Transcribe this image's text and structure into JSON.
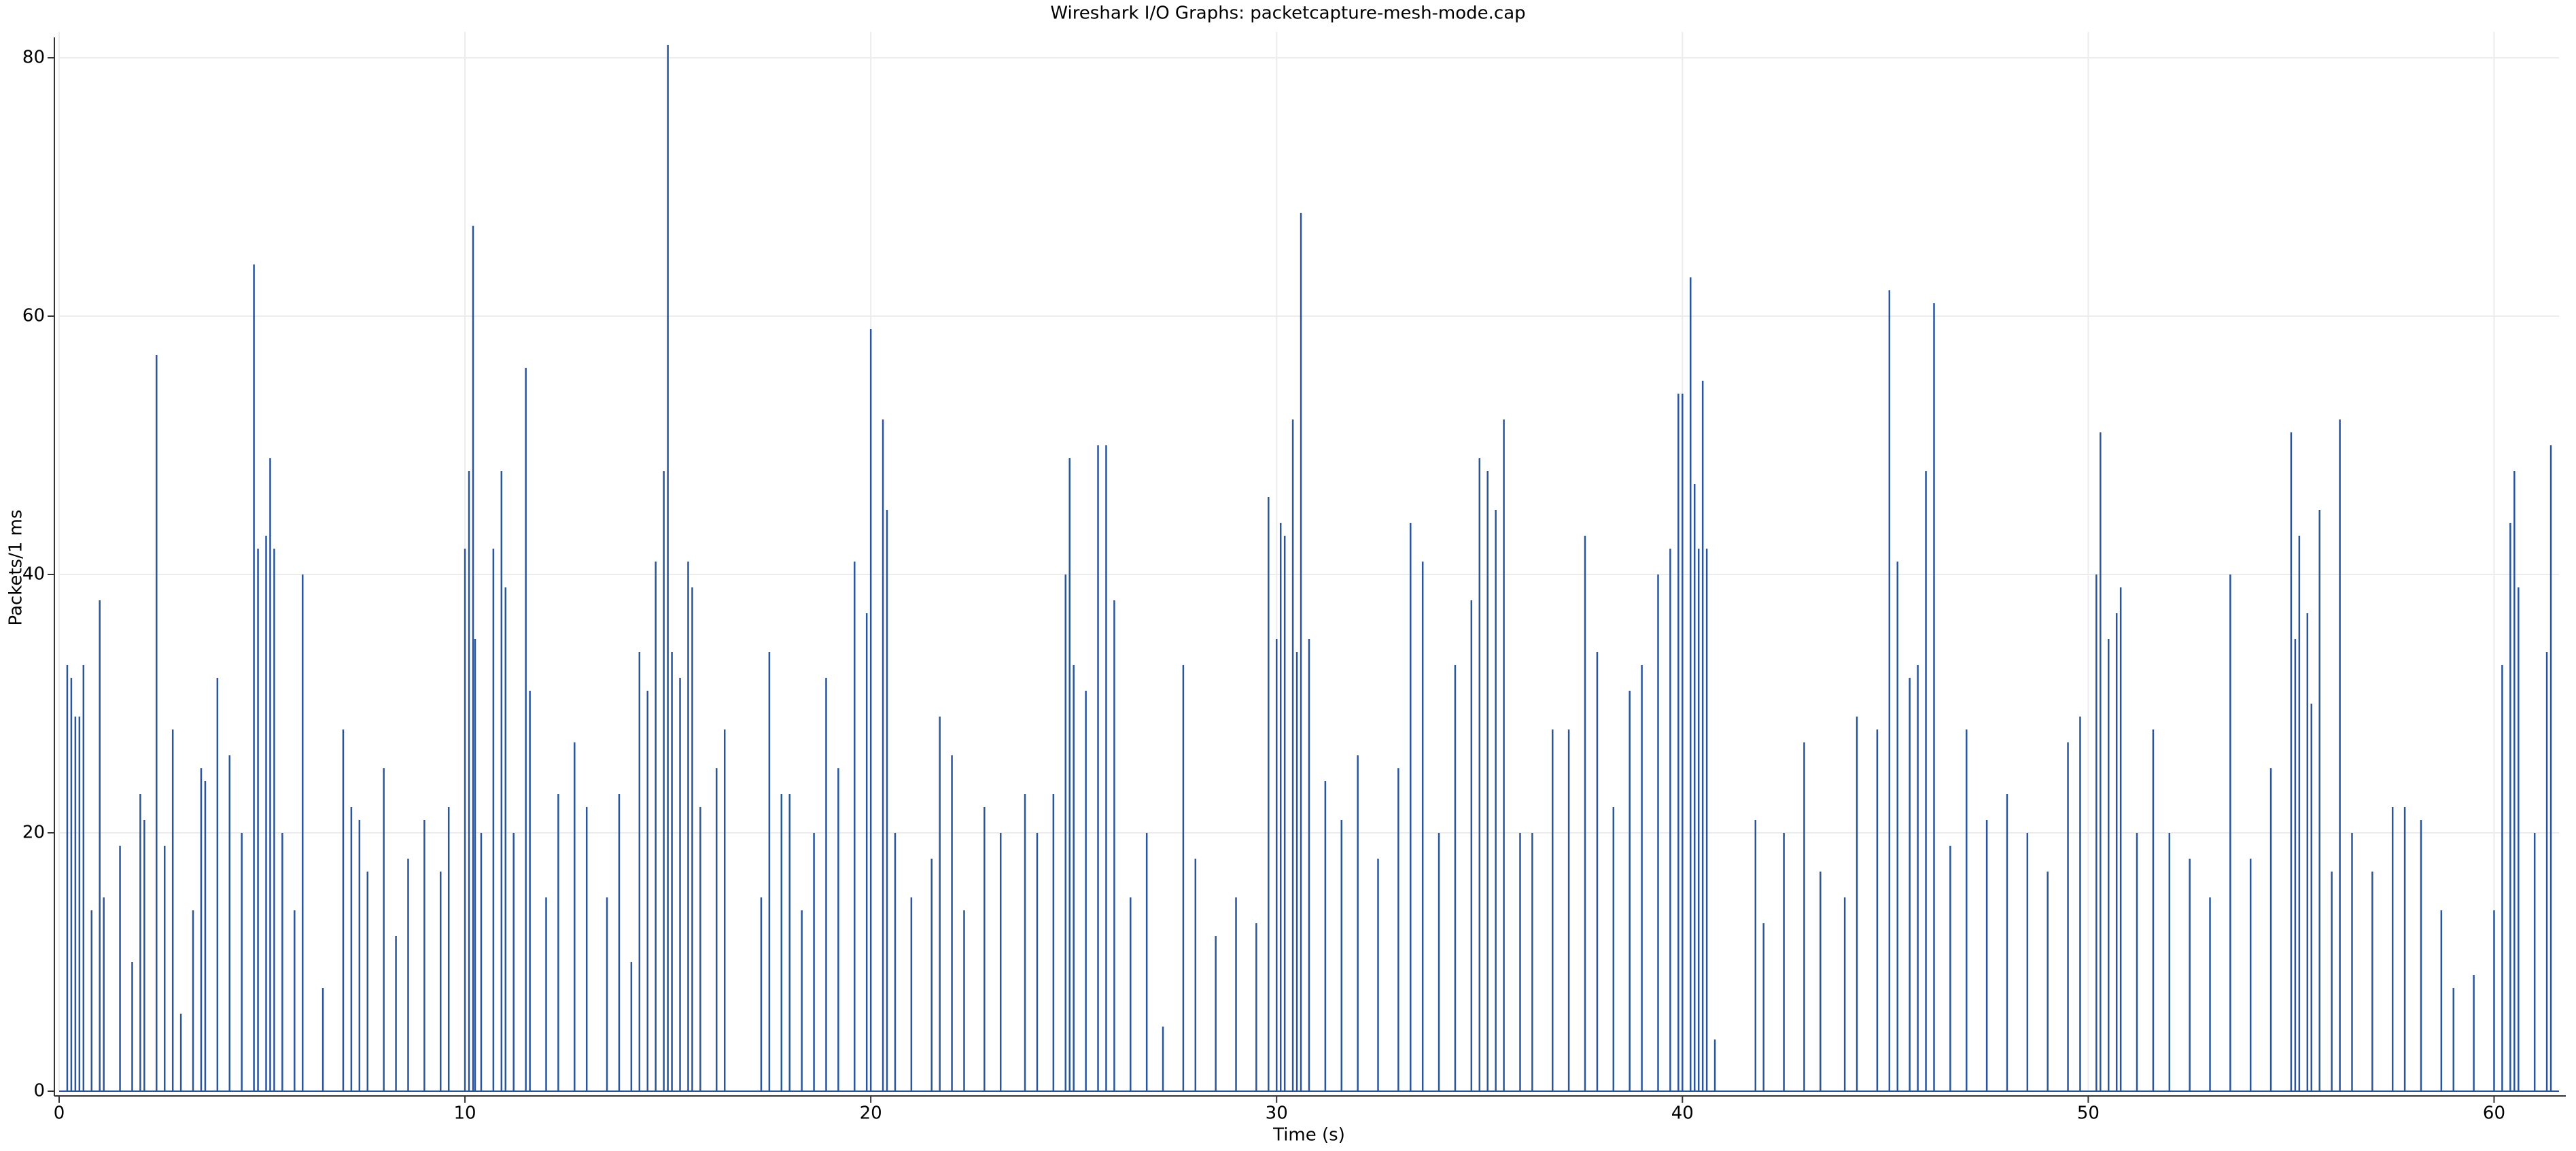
{
  "chart_data": {
    "type": "bar",
    "title": "Wireshark I/O Graphs: packetcapture-mesh-mode.cap",
    "x_label": "Time (s)",
    "y_label": "Packets/1 ms",
    "color": "#2b559b",
    "grid": true,
    "xlim": [
      0,
      61.6
    ],
    "xticks": [
      0,
      10,
      20,
      30,
      40,
      50,
      60
    ],
    "ylim": [
      0,
      82
    ],
    "yticks": [
      0,
      20,
      40,
      60,
      80
    ],
    "x": [
      0.2,
      0.3,
      0.4,
      0.5,
      0.6,
      0.8,
      1.0,
      1.1,
      1.5,
      1.8,
      2.0,
      2.1,
      2.4,
      2.6,
      2.8,
      3.0,
      3.3,
      3.5,
      3.6,
      3.9,
      4.2,
      4.5,
      4.8,
      4.9,
      5.1,
      5.2,
      5.3,
      5.5,
      5.8,
      6.0,
      6.5,
      7.0,
      7.2,
      7.4,
      7.6,
      8.0,
      8.3,
      8.6,
      9.0,
      9.4,
      9.6,
      10.0,
      10.1,
      10.2,
      10.25,
      10.4,
      10.7,
      10.9,
      11.0,
      11.2,
      11.5,
      11.6,
      12.0,
      12.3,
      12.7,
      13.0,
      13.5,
      13.8,
      14.1,
      14.3,
      14.5,
      14.7,
      14.9,
      15.0,
      15.1,
      15.3,
      15.5,
      15.6,
      15.8,
      16.2,
      16.4,
      17.3,
      17.5,
      17.8,
      18.0,
      18.3,
      18.6,
      18.9,
      19.2,
      19.6,
      19.9,
      20.0,
      20.3,
      20.4,
      20.6,
      21.0,
      21.5,
      21.7,
      22.0,
      22.3,
      22.8,
      23.2,
      23.8,
      24.1,
      24.5,
      24.8,
      24.9,
      25.0,
      25.3,
      25.6,
      25.8,
      26.0,
      26.4,
      26.8,
      27.2,
      27.7,
      28.0,
      28.5,
      29.0,
      29.5,
      29.8,
      30.0,
      30.1,
      30.2,
      30.4,
      30.5,
      30.6,
      30.8,
      31.2,
      31.6,
      32.0,
      32.5,
      33.0,
      33.3,
      33.6,
      34.0,
      34.4,
      34.8,
      35.0,
      35.2,
      35.4,
      35.6,
      36.0,
      36.3,
      36.8,
      37.2,
      37.6,
      37.9,
      38.3,
      38.7,
      39.0,
      39.4,
      39.7,
      39.9,
      40.0,
      40.2,
      40.3,
      40.4,
      40.5,
      40.6,
      40.8,
      41.8,
      42.0,
      42.5,
      43.0,
      43.4,
      44.0,
      44.3,
      44.8,
      45.1,
      45.3,
      45.6,
      45.8,
      46.0,
      46.2,
      46.6,
      47.0,
      47.5,
      48.0,
      48.5,
      49.0,
      49.5,
      49.8,
      50.2,
      50.3,
      50.5,
      50.7,
      50.8,
      51.2,
      51.6,
      52.0,
      52.5,
      53.0,
      53.5,
      54.0,
      54.5,
      55.0,
      55.1,
      55.2,
      55.4,
      55.5,
      55.7,
      56.0,
      56.2,
      56.5,
      57.0,
      57.5,
      57.8,
      58.2,
      58.7,
      59.0,
      59.5,
      60.0,
      60.2,
      60.4,
      60.5,
      60.6,
      61.0,
      61.3,
      61.4
    ],
    "values": [
      33,
      32,
      29,
      29,
      33,
      14,
      38,
      15,
      19,
      10,
      23,
      21,
      57,
      19,
      28,
      6,
      14,
      25,
      24,
      32,
      26,
      20,
      64,
      42,
      43,
      49,
      42,
      20,
      14,
      40,
      8,
      28,
      22,
      21,
      17,
      25,
      12,
      18,
      21,
      17,
      22,
      42,
      48,
      67,
      35,
      20,
      42,
      48,
      39,
      20,
      56,
      31,
      15,
      23,
      27,
      22,
      15,
      23,
      10,
      34,
      31,
      41,
      48,
      81,
      34,
      32,
      41,
      39,
      22,
      25,
      28,
      15,
      34,
      23,
      23,
      14,
      20,
      32,
      25,
      41,
      37,
      59,
      52,
      45,
      20,
      15,
      18,
      29,
      26,
      14,
      22,
      20,
      23,
      20,
      23,
      40,
      49,
      33,
      31,
      50,
      50,
      38,
      15,
      20,
      5,
      33,
      18,
      12,
      15,
      13,
      46,
      35,
      44,
      43,
      52,
      34,
      68,
      35,
      24,
      21,
      26,
      18,
      25,
      44,
      41,
      20,
      33,
      38,
      49,
      48,
      45,
      52,
      20,
      20,
      28,
      28,
      43,
      34,
      22,
      31,
      33,
      40,
      42,
      54,
      54,
      63,
      47,
      42,
      55,
      42,
      4,
      21,
      13,
      20,
      27,
      17,
      15,
      29,
      28,
      62,
      41,
      32,
      33,
      48,
      61,
      19,
      28,
      21,
      23,
      20,
      17,
      27,
      29,
      40,
      51,
      35,
      37,
      39,
      20,
      28,
      20,
      18,
      15,
      40,
      18,
      25,
      51,
      35,
      43,
      37,
      30,
      45,
      17,
      52,
      20,
      17,
      22,
      22,
      21,
      14,
      8,
      9,
      14,
      33,
      44,
      48,
      39,
      20,
      34,
      50
    ]
  }
}
